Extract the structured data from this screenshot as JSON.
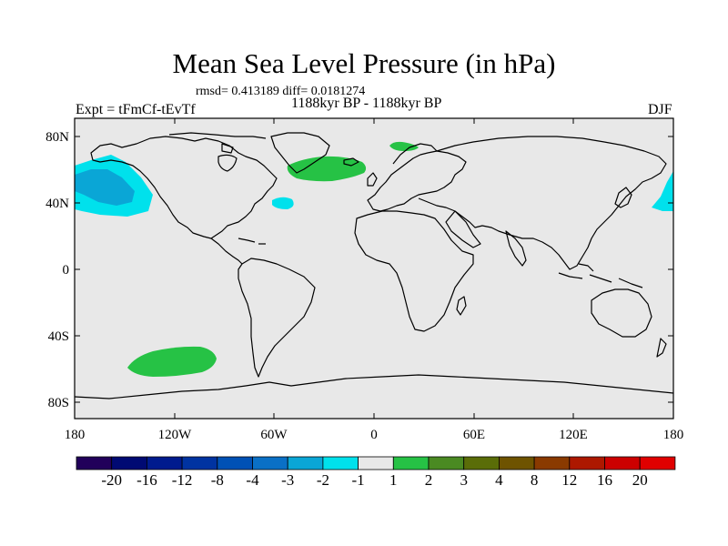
{
  "header": {
    "title": "Mean Sea Level Pressure (in hPa)",
    "stats": "rmsd= 0.413189 diff= 0.0181274",
    "period": "1188kyr BP - 1188kyr BP",
    "experiment": "Expt = tFmCf-tEvTf",
    "season": "DJF"
  },
  "map": {
    "lat_labels": [
      "80N",
      "40N",
      "0",
      "40S",
      "80S"
    ],
    "lon_labels": [
      "180",
      "120W",
      "60W",
      "0",
      "60E",
      "120E",
      "180"
    ],
    "background_color": "#e8e8e8",
    "anomalies": [
      {
        "name": "north-pacific-low",
        "value_range": "-3 to -2",
        "color": "#0aa6d6"
      },
      {
        "name": "north-pacific-low-outer",
        "value_range": "-2 to -1",
        "color": "#00e1ec"
      },
      {
        "name": "north-atlantic-high",
        "value_range": "1 to 2",
        "color": "#26c245"
      },
      {
        "name": "greenland-sea-high",
        "value_range": "1 to 2",
        "color": "#26c245"
      },
      {
        "name": "south-pacific-high",
        "value_range": "1 to 2",
        "color": "#26c245"
      },
      {
        "name": "western-atlantic-low",
        "value_range": "-2 to -1",
        "color": "#00e1ec"
      },
      {
        "name": "west-pacific-low",
        "value_range": "-2 to -1",
        "color": "#00e1ec"
      }
    ]
  },
  "colorbar": {
    "labels": [
      "-20",
      "-16",
      "-12",
      "-8",
      "-4",
      "-3",
      "-2",
      "-1",
      "1",
      "2",
      "3",
      "4",
      "8",
      "12",
      "16",
      "20"
    ],
    "colors": [
      "#21005a",
      "#000a73",
      "#001b8e",
      "#0033a1",
      "#0051b5",
      "#0a70c6",
      "#0aa6d6",
      "#00e1ec",
      "#e8e8e8",
      "#26c245",
      "#4a8a22",
      "#5a6d08",
      "#6e5300",
      "#8a3a00",
      "#ad1800",
      "#cc0000",
      "#e00000"
    ]
  }
}
